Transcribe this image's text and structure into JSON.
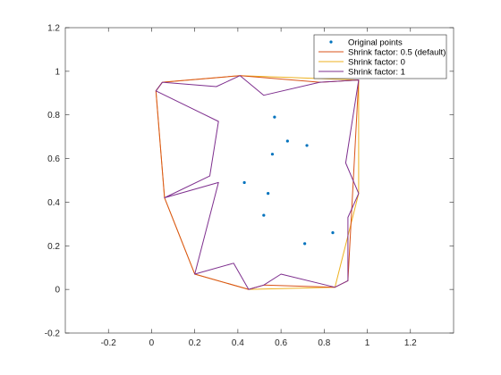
{
  "chart_data": {
    "type": "line",
    "title": "",
    "xlabel": "",
    "ylabel": "",
    "xlim": [
      -0.4,
      1.4
    ],
    "ylim": [
      -0.2,
      1.2
    ],
    "x_ticks": [
      -0.2,
      0,
      0.2,
      0.4,
      0.6,
      0.8,
      1,
      1.2
    ],
    "y_ticks": [
      -0.2,
      0,
      0.2,
      0.4,
      0.6,
      0.8,
      1,
      1.2
    ],
    "x_tick_labels": [
      "-0.2",
      "0",
      "0.2",
      "0.4",
      "0.6",
      "0.8",
      "1",
      "1.2"
    ],
    "y_tick_labels": [
      "-0.2",
      "0",
      "0.2",
      "0.4",
      "0.6",
      "0.8",
      "1",
      "1.2"
    ],
    "grid": false,
    "legend_position": "top-right",
    "series": [
      {
        "name": "Original points",
        "kind": "scatter",
        "color": "#0072BD",
        "x": [
          0.57,
          0.63,
          0.72,
          0.56,
          0.43,
          0.54,
          0.52,
          0.84,
          0.71
        ],
        "y": [
          0.79,
          0.68,
          0.66,
          0.62,
          0.49,
          0.44,
          0.34,
          0.26,
          0.21
        ]
      },
      {
        "name": "Shrink factor: 0.5 (default)",
        "kind": "line",
        "color": "#D95319",
        "x": [
          0.05,
          0.41,
          0.78,
          0.96,
          0.91,
          0.85,
          0.52,
          0.45,
          0.2,
          0.06,
          0.02,
          0.05
        ],
        "y": [
          0.95,
          0.98,
          0.95,
          0.96,
          0.04,
          0.01,
          0.02,
          0.0,
          0.07,
          0.42,
          0.91,
          0.95
        ]
      },
      {
        "name": "Shrink factor: 0",
        "kind": "line",
        "color": "#EDB120",
        "x": [
          0.05,
          0.41,
          0.96,
          0.96,
          0.85,
          0.45,
          0.2,
          0.06,
          0.02,
          0.05
        ],
        "y": [
          0.95,
          0.98,
          0.96,
          0.44,
          0.01,
          0.0,
          0.07,
          0.42,
          0.91,
          0.95
        ]
      },
      {
        "name": "Shrink factor: 1",
        "kind": "line",
        "color": "#7E2F8E",
        "x": [
          0.05,
          0.3,
          0.41,
          0.52,
          0.78,
          0.96,
          0.9,
          0.96,
          0.91,
          0.91,
          0.85,
          0.6,
          0.52,
          0.45,
          0.38,
          0.2,
          0.31,
          0.06,
          0.27,
          0.31,
          0.02,
          0.05
        ],
        "y": [
          0.95,
          0.93,
          0.98,
          0.89,
          0.95,
          0.96,
          0.58,
          0.44,
          0.33,
          0.04,
          0.01,
          0.07,
          0.02,
          0.0,
          0.12,
          0.07,
          0.49,
          0.42,
          0.52,
          0.77,
          0.91,
          0.95
        ]
      }
    ]
  }
}
